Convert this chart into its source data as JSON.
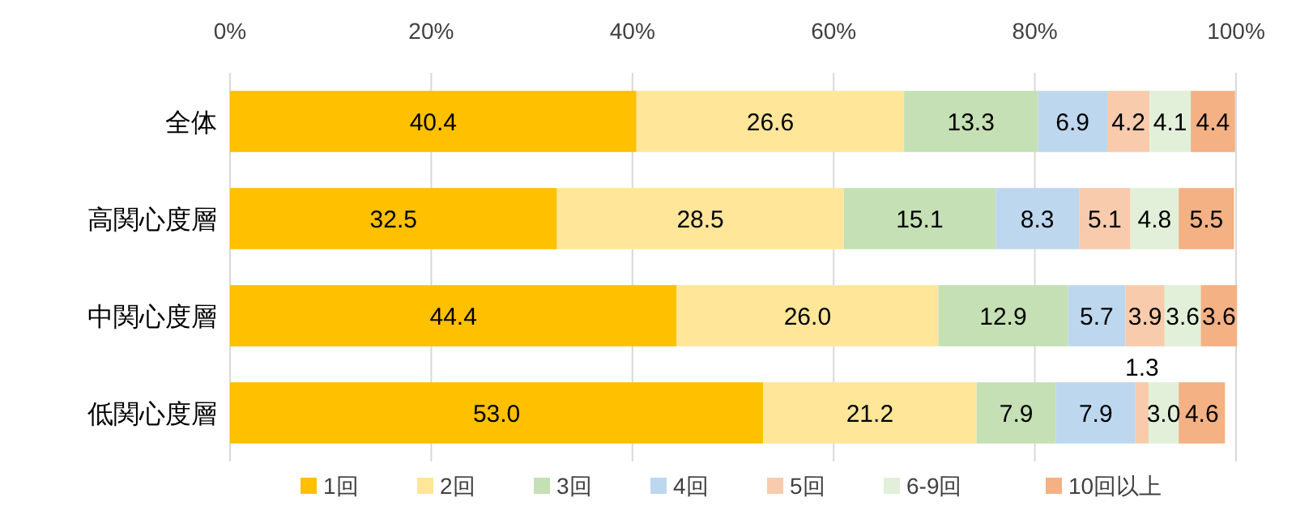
{
  "chart_data": {
    "type": "bar",
    "orientation": "horizontal",
    "stacked": true,
    "categories": [
      "全体",
      "高関心度層",
      "中関心度層",
      "低関心度層"
    ],
    "series": [
      {
        "name": "1回",
        "color": "#ffc000",
        "values": [
          40.4,
          32.5,
          44.4,
          53.0
        ],
        "value_labels": [
          "40.4",
          "32.5",
          "44.4",
          "53.0"
        ]
      },
      {
        "name": "2回",
        "color": "#ffe699",
        "values": [
          26.6,
          28.5,
          26.0,
          21.2
        ],
        "value_labels": [
          "26.6",
          "28.5",
          "26.0",
          "21.2"
        ]
      },
      {
        "name": "3回",
        "color": "#c5e0b4",
        "values": [
          13.3,
          15.1,
          12.9,
          7.9
        ],
        "value_labels": [
          "13.3",
          "15.1",
          "12.9",
          "7.9"
        ]
      },
      {
        "name": "4回",
        "color": "#bdd7ee",
        "values": [
          6.9,
          8.3,
          5.7,
          7.9
        ],
        "value_labels": [
          "6.9",
          "8.3",
          "5.7",
          "7.9"
        ]
      },
      {
        "name": "5回",
        "color": "#f8cbad",
        "values": [
          4.2,
          5.1,
          3.9,
          1.3
        ],
        "value_labels": [
          "4.2",
          "5.1",
          "3.9",
          "1.3"
        ]
      },
      {
        "name": "6-9回",
        "color": "#e2f0d9",
        "values": [
          4.1,
          4.8,
          3.6,
          3.0
        ],
        "value_labels": [
          "4.1",
          "4.8",
          "3.6",
          "3.0"
        ]
      },
      {
        "name": "10回以上",
        "color": "#f4b183",
        "values": [
          4.4,
          5.5,
          3.6,
          4.6
        ],
        "value_labels": [
          "4.4",
          "5.5",
          "3.6",
          "4.6"
        ]
      }
    ],
    "xlim": [
      0,
      100
    ],
    "xticks": [
      {
        "value": 0,
        "label": "0%"
      },
      {
        "value": 20,
        "label": "20%"
      },
      {
        "value": 40,
        "label": "40%"
      },
      {
        "value": 60,
        "label": "60%"
      },
      {
        "value": 80,
        "label": "80%"
      },
      {
        "value": 100,
        "label": "100%"
      }
    ],
    "grid": "x",
    "legend": "bottom"
  }
}
